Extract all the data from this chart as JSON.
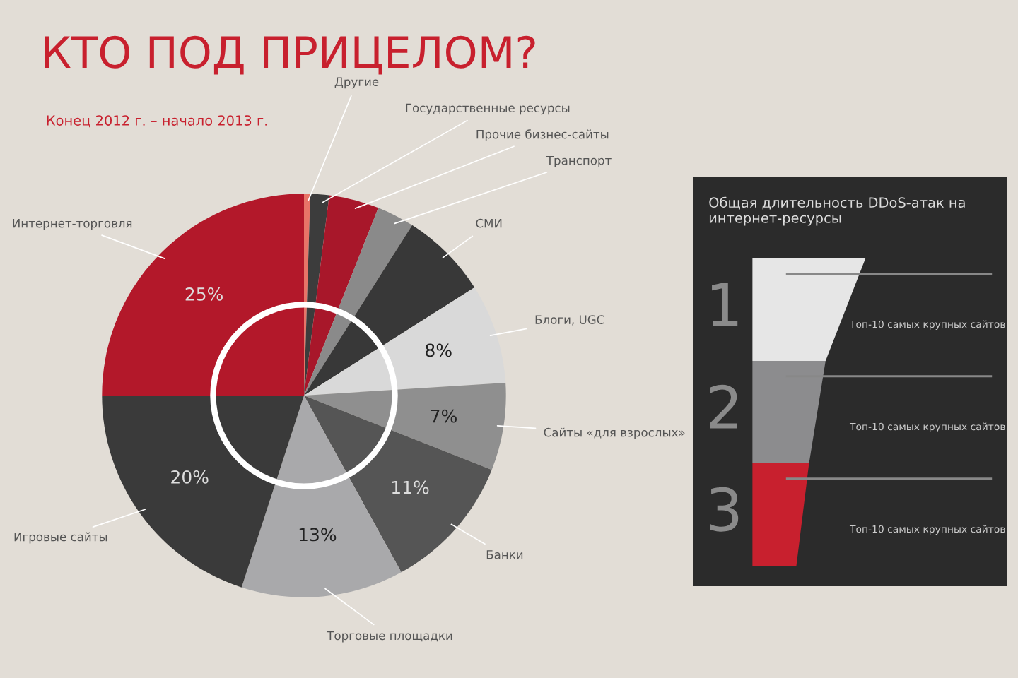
{
  "chart_data": [
    {
      "type": "pie",
      "title": "КТО ПОД ПРИЦЕЛОМ?",
      "subtitle": "Конец 2012 г. – начало 2013 г.",
      "categories": [
        "Другие",
        "Государственные ресурсы",
        "Прочие бизнес-сайты",
        "Транспорт",
        "СМИ",
        "Блоги, UGC",
        "Сайты «для взрослых»",
        "Банки",
        "Торговые площадки",
        "Игровые сайты",
        "Интернет-торговля"
      ],
      "values": [
        0.5,
        1.5,
        4,
        3,
        7,
        8,
        7,
        11,
        13,
        20,
        25
      ],
      "colors": [
        "#e87468",
        "#3c3c3c",
        "#a8172a",
        "#8a8a8a",
        "#383838",
        "#d9d9d9",
        "#8f8f8f",
        "#555555",
        "#a9a9ab",
        "#3a3a3a",
        "#b3182a"
      ],
      "value_labels": [
        null,
        null,
        null,
        null,
        null,
        "8%",
        "7%",
        "11%",
        "13%",
        "20%",
        "25%"
      ]
    },
    {
      "type": "other",
      "title": "Общая длительность DDoS-атак на интернет-ресурсы",
      "categories": [
        "1",
        "2",
        "3"
      ],
      "colors": [
        "#e6e6e6",
        "#8c8c8e",
        "#c8202e"
      ],
      "annotations": [
        "Топ-10 самых крупных сайтов",
        "Топ-10 самых крупных сайтов",
        "Топ-10 самых крупных сайтов"
      ]
    }
  ]
}
